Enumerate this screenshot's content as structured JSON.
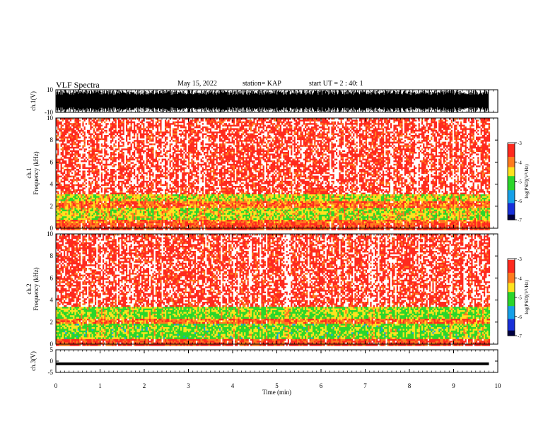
{
  "header": {
    "title": "VLF Spectra",
    "date": "May 15, 2022",
    "station": "station= KAP",
    "start_ut": "start  UT =  2 : 40: 1"
  },
  "colors": {
    "spectrogram": [
      "#ffffff",
      "#ff2a1e",
      "#ff7a1e",
      "#ffe21e",
      "#2bd62b",
      "#16a0e8",
      "#1830d8",
      "#000040"
    ],
    "waveform": "#000000",
    "axes": "#000000"
  },
  "chart_data": [
    {
      "type": "line",
      "panel": "ch1-waveform",
      "ylabel": "ch.1(V)",
      "ylim": [
        -10,
        10
      ],
      "yticks": [
        10,
        -10
      ],
      "x_range_min": [
        0,
        9.8
      ],
      "description_series": "dense broadband VLF waveform, amplitude roughly ±8 V with frequent clipping near ±10 V"
    },
    {
      "type": "heatmap",
      "panel": "ch1-spectrogram",
      "ylabel": "ch.1\nFrequency (kHz)",
      "ylim": [
        0,
        10
      ],
      "yticks": [
        0,
        2,
        4,
        6,
        8,
        10
      ],
      "x_range_min": [
        0,
        9.8
      ],
      "colorbar": {
        "label": "log(PSD)(V²/Hz)",
        "range": [
          -7,
          -3
        ],
        "ticks": [
          -3,
          -4,
          -5,
          -6,
          -7
        ]
      },
      "bands_khz": [
        {
          "range": [
            0.0,
            0.5
          ],
          "level": -3.6
        },
        {
          "range": [
            0.8,
            1.9
          ],
          "level": -4.6
        },
        {
          "range": [
            2.6,
            3.2
          ],
          "level": -4.6
        },
        {
          "range": [
            3.2,
            10.0
          ],
          "level": -3.3
        }
      ]
    },
    {
      "type": "heatmap",
      "panel": "ch2-spectrogram",
      "ylabel": "ch.2\nFrequency (kHz)",
      "ylim": [
        0,
        10
      ],
      "yticks": [
        0,
        2,
        4,
        6,
        8,
        10
      ],
      "x_range_min": [
        0,
        9.8
      ],
      "colorbar": {
        "label": "log(PSD)(V²/Hz)",
        "range": [
          -7,
          -3
        ],
        "ticks": [
          -3,
          -4,
          -5,
          -6,
          -7
        ]
      },
      "bands_khz": [
        {
          "range": [
            0.0,
            0.5
          ],
          "level": -3.6
        },
        {
          "range": [
            0.6,
            1.9
          ],
          "level": -4.9
        },
        {
          "range": [
            2.4,
            3.4
          ],
          "level": -4.8
        },
        {
          "range": [
            3.4,
            10.0
          ],
          "level": -3.3
        }
      ]
    },
    {
      "type": "line",
      "panel": "ch3-waveform",
      "ylabel": "ch.3(V)",
      "ylim": [
        -5,
        5
      ],
      "yticks": [
        5,
        0,
        -5
      ],
      "x_range_min": [
        0,
        9.8
      ],
      "baseline_v": -1.2,
      "amplitude_v": 0.6
    }
  ],
  "x_axis": {
    "label": "Time (min)",
    "ticks": [
      "0",
      "1",
      "2",
      "3",
      "4",
      "5",
      "6",
      "7",
      "8",
      "9",
      "10"
    ],
    "range": [
      0,
      10
    ]
  }
}
